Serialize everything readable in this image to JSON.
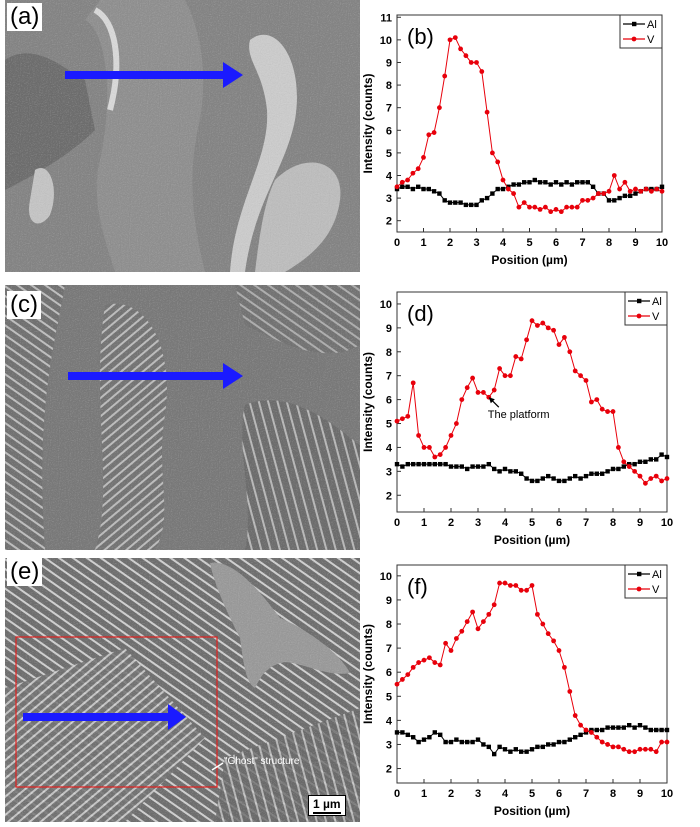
{
  "panels": {
    "a": {
      "label": "(a)"
    },
    "c": {
      "label": "(c)"
    },
    "e": {
      "label": "(e)",
      "annotation": "\"Ghost\" structure",
      "scale_bar": "1 µm"
    }
  },
  "colors": {
    "V": "#e8000b",
    "Al": "#000000",
    "arrow": "#1a1aff",
    "box": "#e0201e"
  },
  "chart_data": [
    {
      "type": "line",
      "panel_label": "(b)",
      "xlabel": "Position (µm)",
      "ylabel": "Intensity (counts)",
      "xlim": [
        0,
        10
      ],
      "ylim": [
        1.5,
        11.1
      ],
      "xticks": [
        0,
        1,
        2,
        3,
        4,
        5,
        6,
        7,
        8,
        9,
        10
      ],
      "yticks": [
        2,
        3,
        4,
        5,
        6,
        7,
        8,
        9,
        10,
        11
      ],
      "grid": false,
      "legend": "top-right",
      "x": [
        0,
        0.2,
        0.4,
        0.6,
        0.8,
        1,
        1.2,
        1.4,
        1.6,
        1.8,
        2,
        2.2,
        2.4,
        2.6,
        2.8,
        3,
        3.2,
        3.4,
        3.6,
        3.8,
        4,
        4.2,
        4.4,
        4.6,
        4.8,
        5,
        5.2,
        5.4,
        5.6,
        5.8,
        6,
        6.2,
        6.4,
        6.6,
        6.8,
        7,
        7.2,
        7.4,
        7.6,
        7.8,
        8,
        8.2,
        8.4,
        8.6,
        8.8,
        9,
        9.2,
        9.4,
        9.6,
        9.8,
        10
      ],
      "series": [
        {
          "name": "Al",
          "marker": "square",
          "values": [
            3.4,
            3.5,
            3.5,
            3.4,
            3.5,
            3.4,
            3.4,
            3.3,
            3.2,
            2.9,
            2.8,
            2.8,
            2.8,
            2.7,
            2.7,
            2.7,
            2.9,
            3.0,
            3.2,
            3.4,
            3.4,
            3.5,
            3.6,
            3.6,
            3.7,
            3.7,
            3.8,
            3.7,
            3.7,
            3.6,
            3.7,
            3.6,
            3.7,
            3.6,
            3.7,
            3.7,
            3.7,
            3.5,
            3.2,
            3.2,
            2.9,
            2.9,
            3.0,
            3.1,
            3.1,
            3.2,
            3.3,
            3.4,
            3.4,
            3.4,
            3.5
          ]
        },
        {
          "name": "V",
          "marker": "circle",
          "values": [
            3.5,
            3.7,
            3.8,
            4.1,
            4.3,
            4.8,
            5.8,
            5.9,
            7.0,
            8.4,
            10.0,
            10.1,
            9.6,
            9.3,
            9.0,
            9.0,
            8.6,
            6.8,
            5.0,
            4.6,
            3.8,
            3.4,
            3.2,
            2.6,
            2.8,
            2.6,
            2.6,
            2.5,
            2.6,
            2.4,
            2.5,
            2.4,
            2.6,
            2.6,
            2.6,
            2.9,
            2.9,
            3.0,
            3.2,
            3.2,
            3.3,
            4.0,
            3.4,
            3.7,
            3.3,
            3.4,
            3.3,
            3.4,
            3.3,
            3.4,
            3.3
          ]
        }
      ]
    },
    {
      "type": "line",
      "panel_label": "(d)",
      "xlabel": "Position (µm)",
      "ylabel": "Intensity (counts)",
      "xlim": [
        0,
        10
      ],
      "ylim": [
        1.3,
        10.5
      ],
      "xticks": [
        0,
        1,
        2,
        3,
        4,
        5,
        6,
        7,
        8,
        9,
        10
      ],
      "yticks": [
        2,
        3,
        4,
        5,
        6,
        7,
        8,
        9,
        10
      ],
      "grid": false,
      "legend": "top-right",
      "annotation": {
        "text": "The platform",
        "x": 3.4,
        "y": 6.1
      },
      "x": [
        0,
        0.2,
        0.4,
        0.6,
        0.8,
        1,
        1.2,
        1.4,
        1.6,
        1.8,
        2,
        2.2,
        2.4,
        2.6,
        2.8,
        3,
        3.2,
        3.4,
        3.6,
        3.8,
        4,
        4.2,
        4.4,
        4.6,
        4.8,
        5,
        5.2,
        5.4,
        5.6,
        5.8,
        6,
        6.2,
        6.4,
        6.6,
        6.8,
        7,
        7.2,
        7.4,
        7.6,
        7.8,
        8,
        8.2,
        8.4,
        8.6,
        8.8,
        9,
        9.2,
        9.4,
        9.6,
        9.8,
        10
      ],
      "series": [
        {
          "name": "Al",
          "marker": "square",
          "values": [
            3.3,
            3.2,
            3.3,
            3.3,
            3.3,
            3.3,
            3.3,
            3.3,
            3.3,
            3.3,
            3.2,
            3.2,
            3.2,
            3.1,
            3.2,
            3.2,
            3.2,
            3.3,
            3.1,
            3.0,
            3.1,
            3.0,
            3.0,
            2.9,
            2.7,
            2.6,
            2.6,
            2.7,
            2.8,
            2.7,
            2.6,
            2.6,
            2.7,
            2.8,
            2.7,
            2.8,
            2.9,
            2.9,
            2.9,
            3.0,
            3.1,
            3.1,
            3.2,
            3.3,
            3.3,
            3.4,
            3.4,
            3.5,
            3.5,
            3.7,
            3.6
          ]
        },
        {
          "name": "V",
          "marker": "circle",
          "values": [
            5.1,
            5.2,
            5.3,
            6.7,
            4.5,
            4.0,
            4.0,
            3.6,
            3.7,
            4.0,
            4.5,
            5.0,
            6.0,
            6.5,
            6.9,
            6.3,
            6.3,
            6.1,
            6.4,
            7.3,
            7.0,
            7.0,
            7.8,
            7.7,
            8.5,
            9.3,
            9.1,
            9.2,
            9.0,
            8.9,
            8.3,
            8.6,
            8.0,
            7.2,
            7.0,
            6.8,
            5.9,
            6.0,
            5.6,
            5.5,
            5.5,
            4.0,
            3.4,
            3.2,
            3.0,
            2.8,
            2.5,
            2.7,
            2.8,
            2.6,
            2.7
          ]
        }
      ]
    },
    {
      "type": "line",
      "panel_label": "(f)",
      "xlabel": "Position (µm)",
      "ylabel": "Intensity (counts)",
      "xlim": [
        0,
        10
      ],
      "ylim": [
        1.4,
        10.45
      ],
      "xticks": [
        0,
        1,
        2,
        3,
        4,
        5,
        6,
        7,
        8,
        9,
        10
      ],
      "yticks": [
        2,
        3,
        4,
        5,
        6,
        7,
        8,
        9,
        10
      ],
      "grid": false,
      "legend": "top-right",
      "x": [
        0,
        0.2,
        0.4,
        0.6,
        0.8,
        1,
        1.2,
        1.4,
        1.6,
        1.8,
        2,
        2.2,
        2.4,
        2.6,
        2.8,
        3,
        3.2,
        3.4,
        3.6,
        3.8,
        4,
        4.2,
        4.4,
        4.6,
        4.8,
        5,
        5.2,
        5.4,
        5.6,
        5.8,
        6,
        6.2,
        6.4,
        6.6,
        6.8,
        7,
        7.2,
        7.4,
        7.6,
        7.8,
        8,
        8.2,
        8.4,
        8.6,
        8.8,
        9,
        9.2,
        9.4,
        9.6,
        9.8,
        10
      ],
      "series": [
        {
          "name": "Al",
          "marker": "square",
          "values": [
            3.5,
            3.5,
            3.4,
            3.3,
            3.1,
            3.2,
            3.3,
            3.5,
            3.4,
            3.1,
            3.1,
            3.2,
            3.1,
            3.1,
            3.1,
            3.2,
            3.0,
            2.9,
            2.6,
            2.9,
            2.8,
            2.7,
            2.8,
            2.7,
            2.7,
            2.8,
            2.9,
            2.9,
            3.0,
            3.0,
            3.1,
            3.1,
            3.2,
            3.3,
            3.4,
            3.5,
            3.6,
            3.6,
            3.6,
            3.7,
            3.7,
            3.7,
            3.7,
            3.8,
            3.7,
            3.8,
            3.7,
            3.6,
            3.6,
            3.6,
            3.6
          ]
        },
        {
          "name": "V",
          "marker": "circle",
          "values": [
            5.5,
            5.7,
            5.9,
            6.2,
            6.4,
            6.5,
            6.6,
            6.4,
            6.3,
            7.2,
            6.9,
            7.4,
            7.7,
            8.1,
            8.5,
            7.8,
            8.1,
            8.4,
            8.8,
            9.7,
            9.7,
            9.6,
            9.6,
            9.4,
            9.4,
            9.6,
            8.4,
            8.0,
            7.6,
            7.3,
            6.9,
            6.2,
            5.2,
            4.2,
            3.8,
            3.6,
            3.5,
            3.3,
            3.1,
            3.0,
            2.9,
            2.9,
            2.8,
            2.7,
            2.7,
            2.8,
            2.8,
            2.8,
            2.7,
            3.1,
            3.1
          ]
        }
      ]
    }
  ]
}
